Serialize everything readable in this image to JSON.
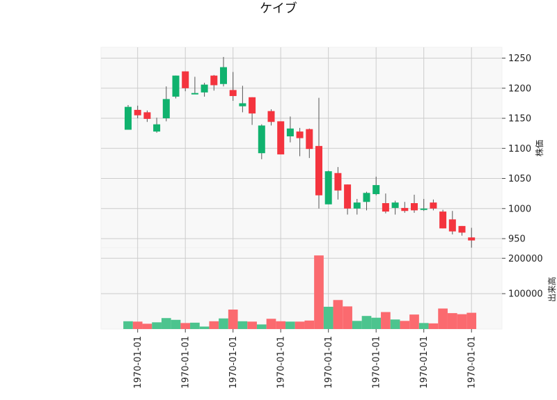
{
  "chart_data": {
    "type": "candlestick",
    "title": "ケイブ",
    "price_panel": {
      "ylabel": "株価",
      "ylim": [
        935,
        1268
      ],
      "yticks": [
        950,
        1000,
        1050,
        1100,
        1150,
        1200,
        1250
      ],
      "grid": true,
      "up_color": "#10b26e",
      "down_color": "#f4343e"
    },
    "volume_panel": {
      "ylabel": "出来高",
      "ylim": [
        0,
        230000
      ],
      "yticks": [
        100000,
        200000
      ],
      "grid": true,
      "up_color": "#4cc48e",
      "down_color": "#fb6a6f"
    },
    "x_tick_label": "1970-01-01",
    "x_tick_positions": [
      1,
      6,
      11,
      16,
      21,
      26,
      31,
      36
    ],
    "candles": [
      {
        "open": 1131,
        "high": 1172,
        "low": 1131,
        "close": 1169,
        "volume": 22000
      },
      {
        "open": 1164,
        "high": 1171,
        "low": 1150,
        "close": 1155,
        "volume": 21000
      },
      {
        "open": 1160,
        "high": 1163,
        "low": 1144,
        "close": 1149,
        "volume": 15000
      },
      {
        "open": 1128,
        "high": 1151,
        "low": 1126,
        "close": 1140,
        "volume": 19000
      },
      {
        "open": 1150,
        "high": 1203,
        "low": 1145,
        "close": 1182,
        "volume": 31000
      },
      {
        "open": 1186,
        "high": 1221,
        "low": 1183,
        "close": 1221,
        "volume": 26000
      },
      {
        "open": 1228,
        "high": 1228,
        "low": 1195,
        "close": 1200,
        "volume": 17000
      },
      {
        "open": 1190,
        "high": 1219,
        "low": 1190,
        "close": 1192,
        "volume": 18000
      },
      {
        "open": 1193,
        "high": 1209,
        "low": 1186,
        "close": 1206,
        "volume": 7000
      },
      {
        "open": 1221,
        "high": 1222,
        "low": 1196,
        "close": 1205,
        "volume": 22000
      },
      {
        "open": 1207,
        "high": 1252,
        "low": 1203,
        "close": 1235,
        "volume": 30000
      },
      {
        "open": 1197,
        "high": 1227,
        "low": 1179,
        "close": 1187,
        "volume": 55000
      },
      {
        "open": 1170,
        "high": 1204,
        "low": 1160,
        "close": 1175,
        "volume": 22000
      },
      {
        "open": 1185,
        "high": 1185,
        "low": 1139,
        "close": 1158,
        "volume": 21000
      },
      {
        "open": 1092,
        "high": 1140,
        "low": 1082,
        "close": 1138,
        "volume": 13000
      },
      {
        "open": 1162,
        "high": 1165,
        "low": 1138,
        "close": 1144,
        "volume": 29000
      },
      {
        "open": 1145,
        "high": 1145,
        "low": 1090,
        "close": 1090,
        "volume": 22000
      },
      {
        "open": 1120,
        "high": 1153,
        "low": 1110,
        "close": 1133,
        "volume": 21000
      },
      {
        "open": 1128,
        "high": 1134,
        "low": 1087,
        "close": 1117,
        "volume": 21000
      },
      {
        "open": 1132,
        "high": 1133,
        "low": 1084,
        "close": 1099,
        "volume": 24000
      },
      {
        "open": 1104,
        "high": 1184,
        "low": 1000,
        "close": 1022,
        "volume": 208000
      },
      {
        "open": 1007,
        "high": 1063,
        "low": 1007,
        "close": 1062,
        "volume": 63000
      },
      {
        "open": 1059,
        "high": 1069,
        "low": 1015,
        "close": 1030,
        "volume": 82000
      },
      {
        "open": 1040,
        "high": 1040,
        "low": 990,
        "close": 1000,
        "volume": 64000
      },
      {
        "open": 1000,
        "high": 1016,
        "low": 990,
        "close": 1010,
        "volume": 23000
      },
      {
        "open": 1011,
        "high": 1028,
        "low": 997,
        "close": 1026,
        "volume": 37000
      },
      {
        "open": 1024,
        "high": 1053,
        "low": 1022,
        "close": 1039,
        "volume": 32000
      },
      {
        "open": 1009,
        "high": 1025,
        "low": 992,
        "close": 995,
        "volume": 48000
      },
      {
        "open": 1001,
        "high": 1013,
        "low": 990,
        "close": 1010,
        "volume": 27000
      },
      {
        "open": 1001,
        "high": 1011,
        "low": 993,
        "close": 996,
        "volume": 23000
      },
      {
        "open": 1009,
        "high": 1023,
        "low": 993,
        "close": 997,
        "volume": 41000
      },
      {
        "open": 999,
        "high": 1016,
        "low": 996,
        "close": 1000,
        "volume": 17000
      },
      {
        "open": 1010,
        "high": 1015,
        "low": 997,
        "close": 1000,
        "volume": 16000
      },
      {
        "open": 995,
        "high": 998,
        "low": 967,
        "close": 967,
        "volume": 58000
      },
      {
        "open": 982,
        "high": 996,
        "low": 957,
        "close": 962,
        "volume": 45000
      },
      {
        "open": 971,
        "high": 971,
        "low": 955,
        "close": 960,
        "volume": 42000
      },
      {
        "open": 952,
        "high": 968,
        "low": 935,
        "close": 947,
        "volume": 46000
      }
    ]
  }
}
